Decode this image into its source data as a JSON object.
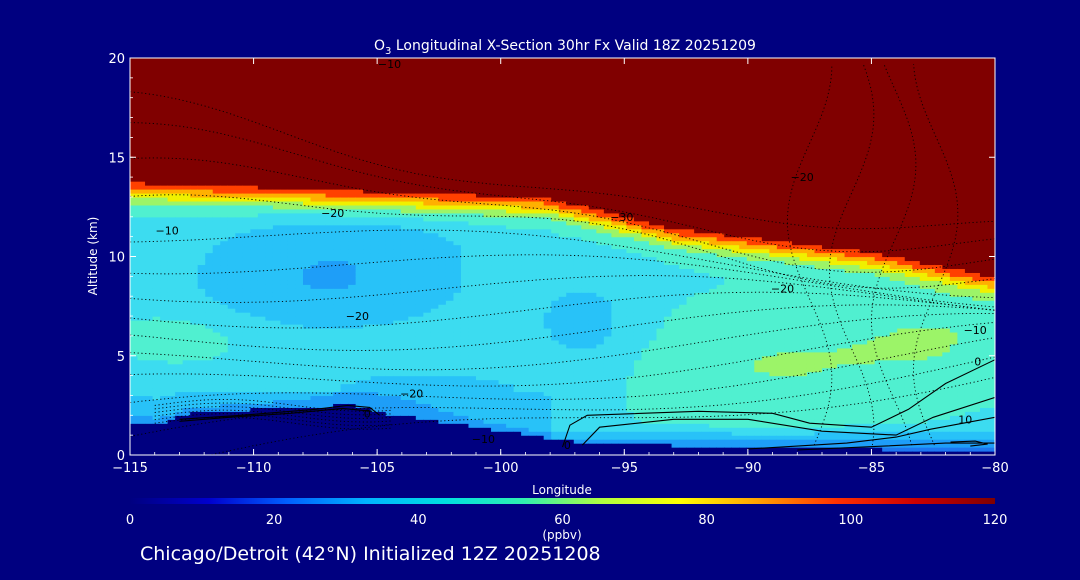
{
  "chart_data": {
    "type": "heatmap",
    "title": {
      "main": "O",
      "subscript": "3",
      "rest": " Longitudinal X-Section 30hr  Fx Valid 18Z 20251209"
    },
    "xlabel": "Longitude",
    "ylabel": "Altitude (km)",
    "xlim": [
      -115,
      -80
    ],
    "ylim": [
      0,
      20
    ],
    "xticks": [
      -115,
      -110,
      -105,
      -100,
      -95,
      -90,
      -85,
      -80
    ],
    "xtick_labels": [
      "−115",
      "−110",
      "−105",
      "−100",
      "−95",
      "−90",
      "−85",
      "−80"
    ],
    "yticks": [
      0,
      5,
      10,
      15,
      20
    ],
    "ytick_labels": [
      "0",
      "5",
      "10",
      "15",
      "20"
    ],
    "colorbar": {
      "min": 0,
      "max": 120,
      "ticks": [
        0,
        20,
        40,
        60,
        80,
        100,
        120
      ],
      "tick_labels": [
        "0",
        "20",
        "40",
        "60",
        "80",
        "100",
        "120"
      ],
      "units": "(ppbv)",
      "colors": [
        "#000080",
        "#0000cd",
        "#0060ff",
        "#00b4ff",
        "#00e0e0",
        "#30f0b0",
        "#b0ff40",
        "#ffff00",
        "#ffa000",
        "#ff3000",
        "#cc0000",
        "#800000"
      ]
    },
    "fill_levels": [
      {
        "value": 5,
        "color": "#000080"
      },
      {
        "value": 28,
        "color": "#0a28cc"
      },
      {
        "value": 40,
        "color": "#1e78f0"
      },
      {
        "value": 48,
        "color": "#1e9ef8"
      },
      {
        "value": 54,
        "color": "#28c2f8"
      },
      {
        "value": 58,
        "color": "#3cdcf0"
      },
      {
        "value": 63,
        "color": "#50f0d0"
      },
      {
        "value": 68,
        "color": "#9cf468"
      },
      {
        "value": 74,
        "color": "#f0f000"
      },
      {
        "value": 82,
        "color": "#ffb000"
      },
      {
        "value": 92,
        "color": "#ff4000"
      },
      {
        "value": 120,
        "color": "#800000"
      }
    ],
    "contour_labels": [
      {
        "text": "−10",
        "lon": -104.5,
        "alt": 19.7
      },
      {
        "text": "−20",
        "lon": -87.8,
        "alt": 14.0
      },
      {
        "text": "−30",
        "lon": -95.1,
        "alt": 12.0
      },
      {
        "text": "−20",
        "lon": -106.8,
        "alt": 12.2
      },
      {
        "text": "−10",
        "lon": -113.5,
        "alt": 11.3
      },
      {
        "text": "−20",
        "lon": -88.6,
        "alt": 8.4
      },
      {
        "text": "−20",
        "lon": -105.8,
        "alt": 7.0
      },
      {
        "text": "−10",
        "lon": -80.8,
        "alt": 6.3
      },
      {
        "text": "0",
        "lon": -80.7,
        "alt": 4.7
      },
      {
        "text": "−20",
        "lon": -103.6,
        "alt": 3.1
      },
      {
        "text": "0",
        "lon": -105.4,
        "alt": 2.1
      },
      {
        "text": "−10",
        "lon": -100.7,
        "alt": 0.8
      },
      {
        "text": "0",
        "lon": -97.3,
        "alt": 0.5
      },
      {
        "text": "10",
        "lon": -81.2,
        "alt": 1.8
      }
    ],
    "footer": "Chicago/Detroit (42°N) Initialized 12Z 20251208"
  }
}
